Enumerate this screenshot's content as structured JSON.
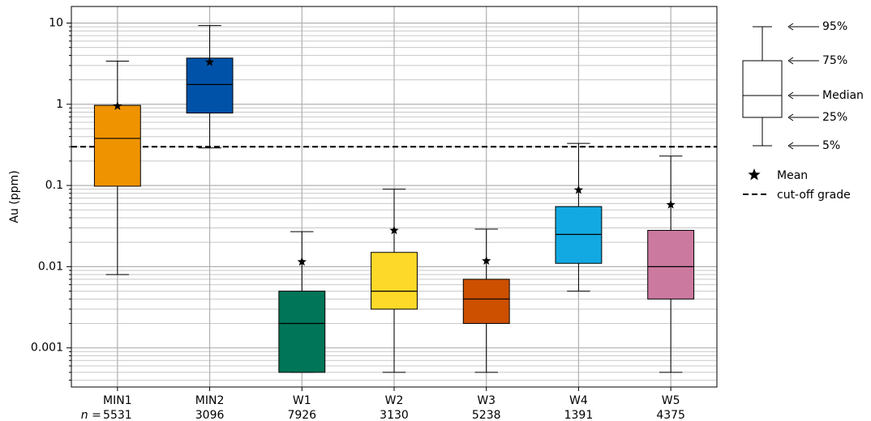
{
  "chart_data": {
    "type": "box",
    "y_label": "Au (ppm)",
    "log_scale": true,
    "grid": true,
    "ylim": [
      0.00033,
      16
    ],
    "yticks": [
      0.001,
      0.01,
      0.1,
      1,
      10
    ],
    "yminorticks": [
      0.0004,
      0.0005,
      0.0006,
      0.0007,
      0.0008,
      0.0009,
      0.002,
      0.003,
      0.004,
      0.005,
      0.006,
      0.007,
      0.008,
      0.009,
      0.02,
      0.03,
      0.04,
      0.05,
      0.06,
      0.07,
      0.08,
      0.09,
      0.2,
      0.3,
      0.4,
      0.5,
      0.6,
      0.7,
      0.8,
      0.9,
      2,
      3,
      4,
      5,
      6,
      7,
      8,
      9
    ],
    "categories": [
      "MIN1",
      "MIN2",
      "W1",
      "W2",
      "W3",
      "W4",
      "W5"
    ],
    "n_label": "n =",
    "n": [
      5531,
      3096,
      7926,
      3130,
      5238,
      1391,
      4375
    ],
    "boxes": [
      {
        "whislo": 0.008,
        "q1": 0.098,
        "med": 0.38,
        "q3": 0.97,
        "whishi": 3.4,
        "mean": 0.95,
        "color": "#ef9300"
      },
      {
        "whislo": 0.29,
        "q1": 0.78,
        "med": 1.75,
        "q3": 3.7,
        "whishi": 9.3,
        "mean": 3.3,
        "color": "#0052a8"
      },
      {
        "whislo": 0.0005,
        "q1": 0.0005,
        "med": 0.002,
        "q3": 0.005,
        "whishi": 0.027,
        "mean": 0.0115,
        "color": "#007558"
      },
      {
        "whislo": 0.0005,
        "q1": 0.003,
        "med": 0.005,
        "q3": 0.015,
        "whishi": 0.09,
        "mean": 0.028,
        "color": "#fdd929"
      },
      {
        "whislo": 0.0005,
        "q1": 0.002,
        "med": 0.004,
        "q3": 0.007,
        "whishi": 0.029,
        "mean": 0.0118,
        "color": "#cc5000"
      },
      {
        "whislo": 0.005,
        "q1": 0.011,
        "med": 0.025,
        "q3": 0.055,
        "whishi": 0.33,
        "mean": 0.088,
        "color": "#12a9e2"
      },
      {
        "whislo": 0.0005,
        "q1": 0.004,
        "med": 0.01,
        "q3": 0.028,
        "whishi": 0.23,
        "mean": 0.058,
        "color": "#cc799f"
      }
    ],
    "cutoff": 0.3,
    "legend": {
      "key_labels": [
        "95%",
        "75%",
        "Median",
        "25%",
        "5%"
      ],
      "mean_label": "Mean",
      "cutoff_label": "cut-off grade"
    }
  }
}
